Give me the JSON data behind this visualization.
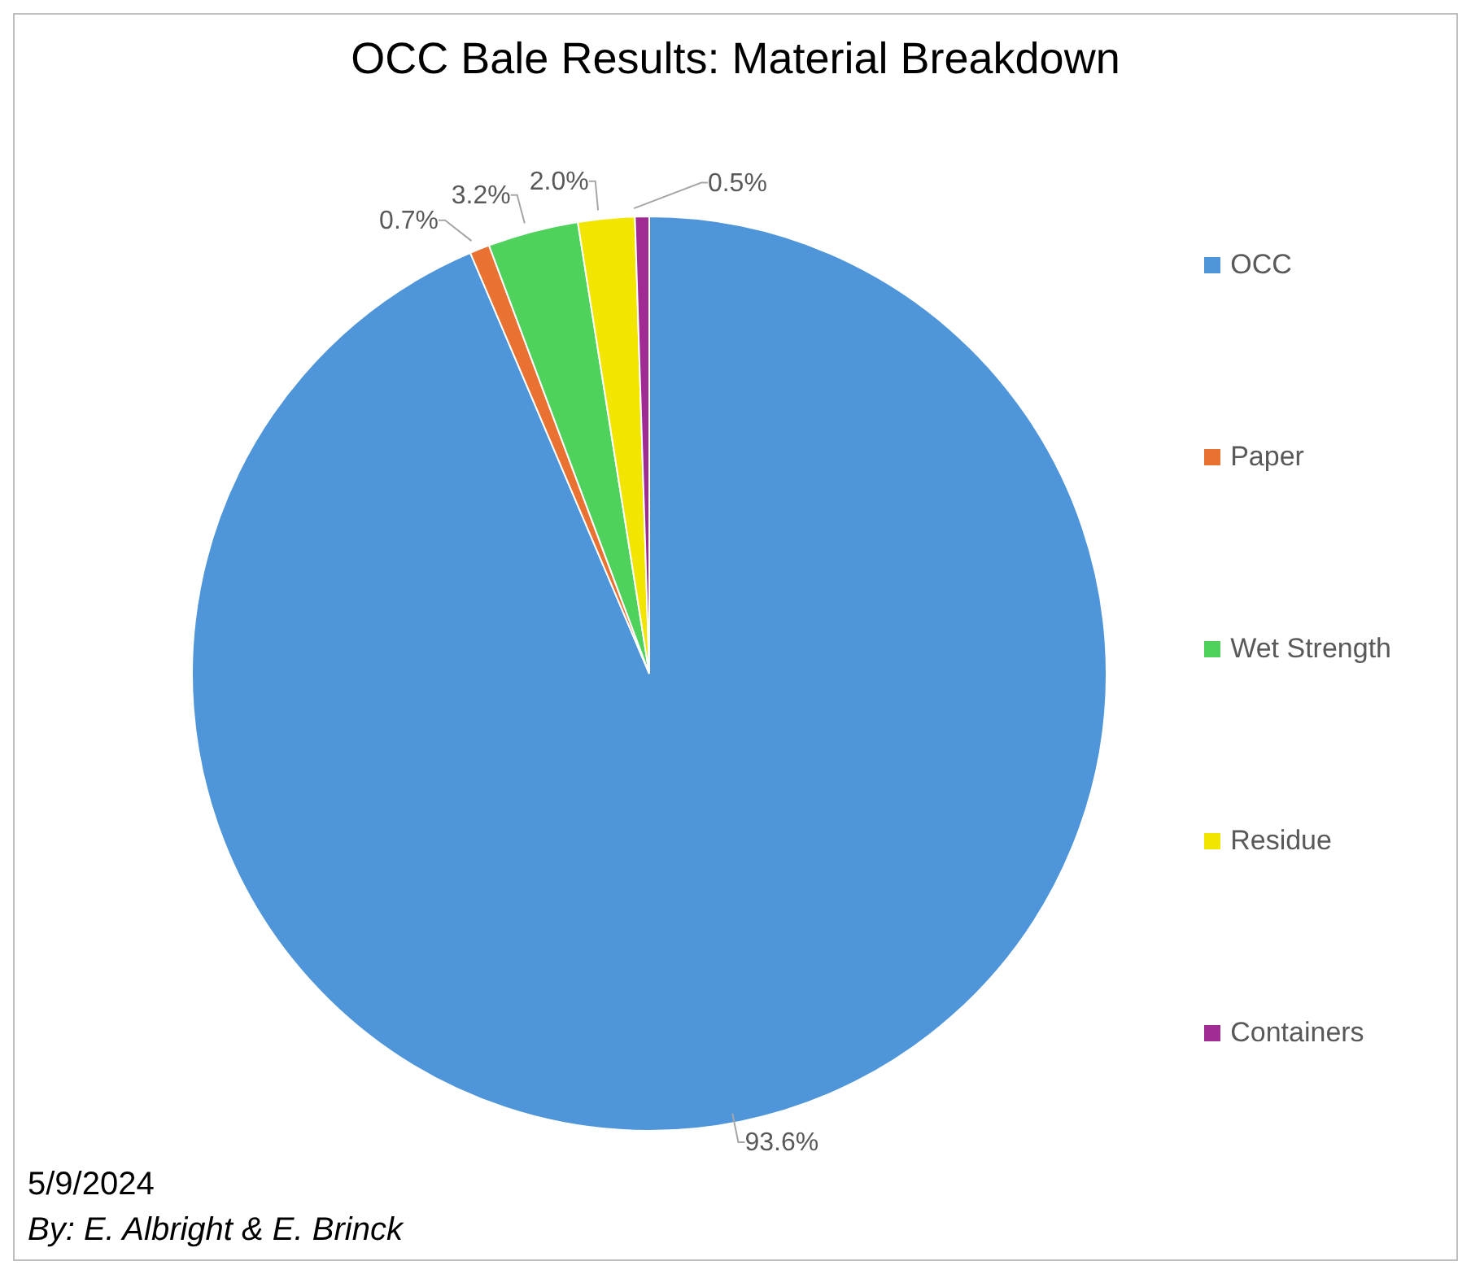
{
  "chart_data": {
    "type": "pie",
    "title": "OCC Bale Results: Material Breakdown",
    "categories": [
      "OCC",
      "Paper",
      "Wet Strength",
      "Residue",
      "Containers"
    ],
    "values": [
      93.6,
      0.7,
      3.2,
      2.0,
      0.5
    ],
    "value_labels": [
      "93.6%",
      "0.7%",
      "3.2%",
      "2.0%",
      "0.5%"
    ],
    "colors": [
      "#4e95d9",
      "#e97132",
      "#4ed25c",
      "#f2e600",
      "#a02b93"
    ],
    "legend": "right",
    "annotations": [
      "5/9/2024",
      "By: E. Albright & E. Brinck"
    ]
  }
}
